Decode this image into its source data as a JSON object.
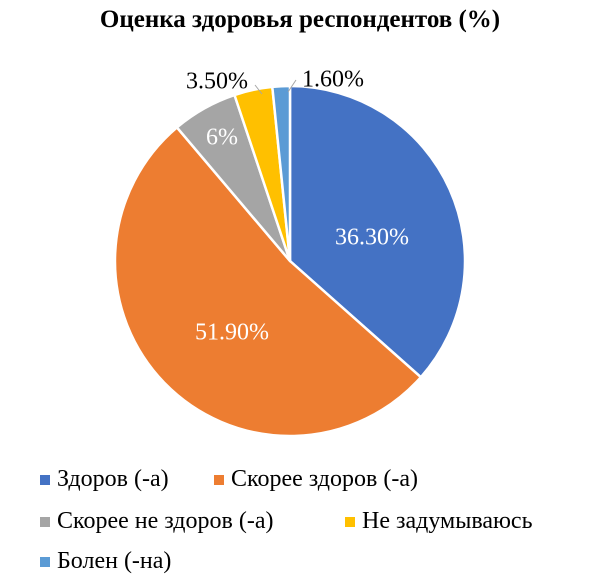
{
  "chart_data": {
    "type": "pie",
    "title": "Оценка здоровья респондентов (%)",
    "slices": [
      {
        "name": "Здоров (-а)",
        "value": 36.3,
        "label": "36.30%",
        "color": "#4472C4"
      },
      {
        "name": "Скорее здоров (-а)",
        "value": 51.9,
        "label": "51.90%",
        "color": "#ED7D31"
      },
      {
        "name": "Скорее не здоров (-а)",
        "value": 6.0,
        "label": "6%",
        "color": "#A5A5A5"
      },
      {
        "name": "Не задумываюсь",
        "value": 3.5,
        "label": "3.50%",
        "color": "#FFC000"
      },
      {
        "name": "Болен (-на)",
        "value": 1.6,
        "label": "1.60%",
        "color": "#5B9BD5"
      }
    ],
    "legend_position": "bottom"
  }
}
